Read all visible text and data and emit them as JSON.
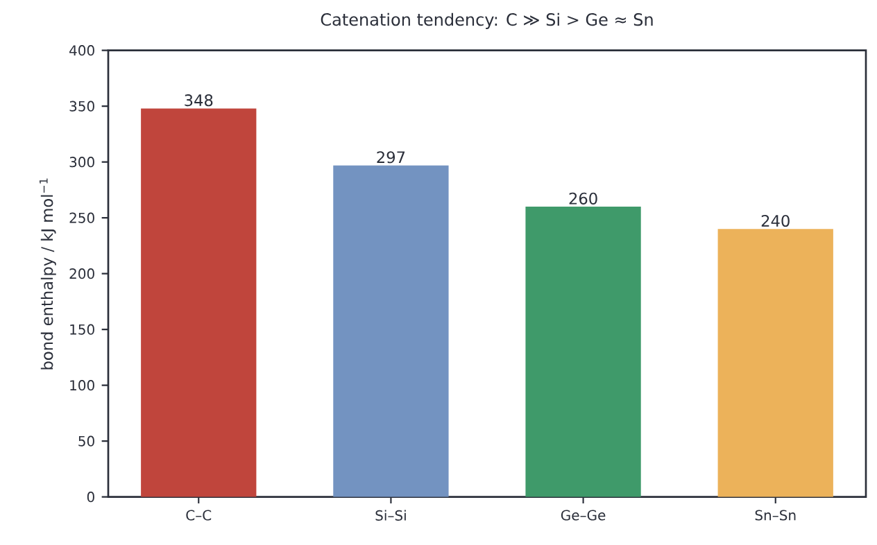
{
  "chart_data": {
    "type": "bar",
    "title": "Catenation tendency: C ≫ Si > Ge ≈ Sn",
    "ylabel": "bond enthalpy / kJ mol$^{−1}$",
    "categories": [
      "C–C",
      "Si–Si",
      "Ge–Ge",
      "Sn–Sn"
    ],
    "values": [
      348,
      297,
      260,
      240
    ],
    "colors": [
      "#c0453c",
      "#7393c1",
      "#3f9a6a",
      "#ecb25a"
    ],
    "ylim": [
      0,
      400
    ],
    "yticks": [
      0,
      50,
      100,
      150,
      200,
      250,
      300,
      350,
      400
    ],
    "data_labels": true
  }
}
